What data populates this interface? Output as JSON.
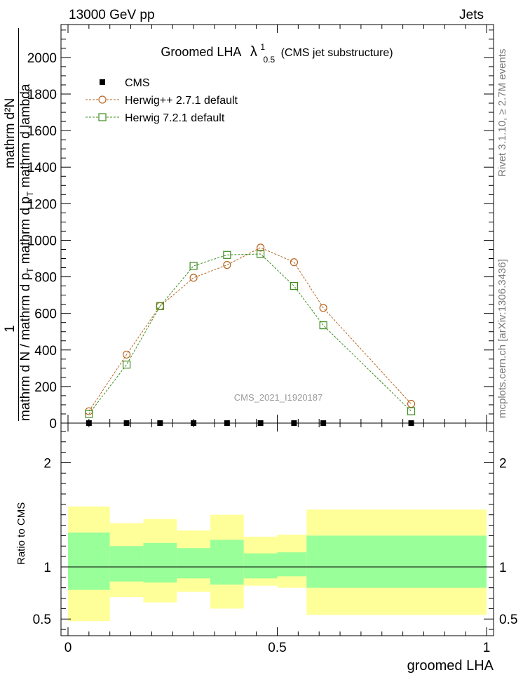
{
  "header": {
    "left": "13000 GeV pp",
    "right": "Jets"
  },
  "side_labels": {
    "rivet": "Rivet 3.1.10, ≥ 2.7M events",
    "mcplots": "mcplots.cern.ch [arXiv:1306.3436]"
  },
  "chart_data": [
    {
      "type": "line",
      "title": "Groomed LHA",
      "title_symbol": "λ",
      "title_sub": "0.5",
      "title_sup": "1",
      "subtitle": "(CMS jet substructure)",
      "watermark": "CMS_2021_I1920187",
      "ylabel": {
        "numerator": "1",
        "denominator": "mathrm d N / mathrm d p",
        "denominator_sub": "T",
        "numerator2": "mathrm d²N",
        "denominator2": "mathrm d p",
        "denominator2_sub": "T",
        "denominator2_tail": "mathrm d lambda"
      },
      "xlim": [
        0,
        1
      ],
      "ylim": [
        0,
        2180
      ],
      "yticks": [
        0,
        200,
        400,
        600,
        800,
        1000,
        1200,
        1400,
        1600,
        1800,
        2000
      ],
      "ytick_labels": [
        "0",
        "200",
        "400",
        "600",
        "800",
        "1000",
        "1200",
        "1400",
        "1600",
        "1800",
        "2000"
      ],
      "legend_placement": "top-left",
      "x": [
        0.05,
        0.14,
        0.22,
        0.3,
        0.38,
        0.46,
        0.54,
        0.61,
        0.82
      ],
      "series": [
        {
          "name": "CMS",
          "marker": "filled-square",
          "color": "#000000",
          "values": [
            0,
            0,
            0,
            0,
            0,
            0,
            0,
            0,
            0
          ]
        },
        {
          "name": "Herwig++ 2.7.1 default",
          "marker": "open-circle",
          "color": "#b8651f",
          "values": [
            65,
            375,
            640,
            795,
            865,
            960,
            880,
            630,
            105
          ]
        },
        {
          "name": "Herwig 7.2.1 default",
          "marker": "open-square",
          "color": "#3c8c1e",
          "values": [
            50,
            320,
            640,
            860,
            920,
            925,
            750,
            535,
            65
          ]
        }
      ]
    },
    {
      "type": "area",
      "ylabel": "Ratio to CMS",
      "xlabel": "groomed LHA",
      "xlim": [
        0,
        1
      ],
      "ylim": [
        0.34,
        2.38
      ],
      "xticks": [
        0,
        0.5,
        1
      ],
      "xtick_labels": [
        "0",
        "0.5",
        "1"
      ],
      "yticks": [
        0.5,
        1,
        2
      ],
      "ytick_labels": [
        "0.5",
        "1",
        "2"
      ],
      "reference_line": 1,
      "band_colors": {
        "inner": "#99ff99",
        "outer": "#ffff99"
      },
      "bins": [
        {
          "x0": 0.0,
          "x1": 0.1,
          "inner_low": 0.78,
          "inner_high": 1.33,
          "outer_low": 0.48,
          "outer_high": 1.58
        },
        {
          "x0": 0.1,
          "x1": 0.18,
          "inner_low": 0.86,
          "inner_high": 1.2,
          "outer_low": 0.71,
          "outer_high": 1.42
        },
        {
          "x0": 0.18,
          "x1": 0.26,
          "inner_low": 0.85,
          "inner_high": 1.23,
          "outer_low": 0.66,
          "outer_high": 1.46
        },
        {
          "x0": 0.26,
          "x1": 0.34,
          "inner_low": 0.89,
          "inner_high": 1.18,
          "outer_low": 0.76,
          "outer_high": 1.35
        },
        {
          "x0": 0.34,
          "x1": 0.42,
          "inner_low": 0.83,
          "inner_high": 1.26,
          "outer_low": 0.6,
          "outer_high": 1.5
        },
        {
          "x0": 0.42,
          "x1": 0.5,
          "inner_low": 0.89,
          "inner_high": 1.13,
          "outer_low": 0.82,
          "outer_high": 1.29
        },
        {
          "x0": 0.5,
          "x1": 0.57,
          "inner_low": 0.91,
          "inner_high": 1.14,
          "outer_low": 0.8,
          "outer_high": 1.31
        },
        {
          "x0": 0.57,
          "x1": 1.0,
          "inner_low": 0.8,
          "inner_high": 1.3,
          "outer_low": 0.54,
          "outer_high": 1.55
        }
      ]
    }
  ]
}
